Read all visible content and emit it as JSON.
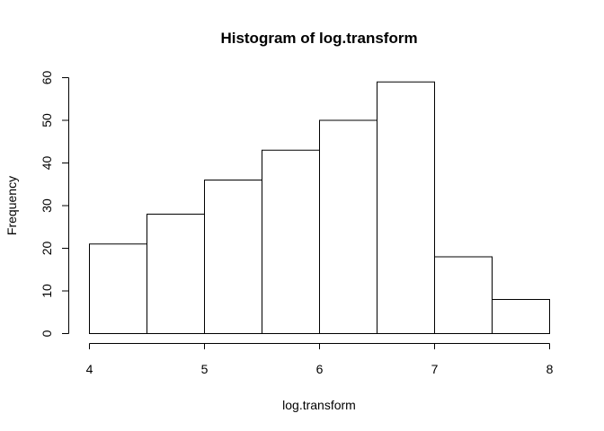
{
  "chart_data": {
    "type": "bar",
    "title": "Histogram of log.transform",
    "xlabel": "log.transform",
    "ylabel": "Frequency",
    "bin_edges": [
      4,
      4.5,
      5,
      5.5,
      6,
      6.5,
      7,
      7.5,
      8
    ],
    "values": [
      21,
      28,
      36,
      43,
      50,
      59,
      18,
      8
    ],
    "xlim": [
      4,
      8
    ],
    "ylim": [
      0,
      60
    ],
    "x_ticks": [
      "4",
      "5",
      "6",
      "7",
      "8"
    ],
    "y_ticks": [
      "0",
      "10",
      "20",
      "30",
      "40",
      "50",
      "60"
    ],
    "grid": false,
    "legend": "none",
    "bar_fill": "#ffffff",
    "bar_stroke": "#000000"
  }
}
